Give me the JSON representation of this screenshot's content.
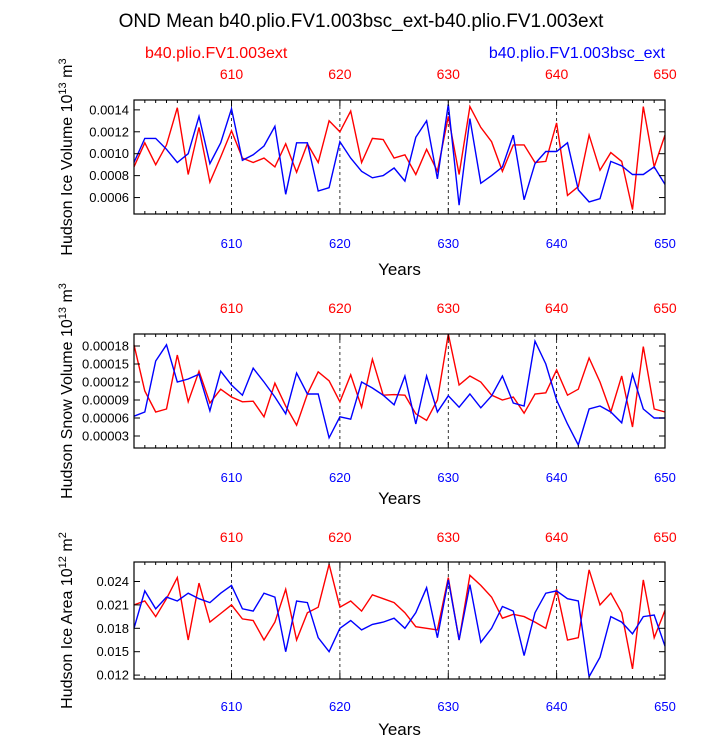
{
  "figure": {
    "title": "OND Mean b40.plio.FV1.003bsc_ext-b40.plio.FV1.003ext",
    "legend": {
      "left": {
        "label": "b40.plio.FV1.003ext",
        "color": "#ff0000"
      },
      "right": {
        "label": "b40.plio.FV1.003bsc_ext",
        "color": "#0000ff"
      }
    }
  },
  "chart_data": [
    {
      "type": "line",
      "ylabel": "Hudson Ice Volume 10^13 m^3",
      "ylabel_parts": {
        "base": "Hudson Ice Volume 10",
        "exp1": "13",
        "unit": " m",
        "exp2": "3"
      },
      "xlabel": "Years",
      "xlim": [
        601,
        650
      ],
      "ylim": [
        0.00045,
        0.00149
      ],
      "yticks": [
        0.0006,
        0.0008,
        0.001,
        0.0012,
        0.0014
      ],
      "ytick_labels": [
        "0.0006",
        "0.0008",
        "0.0010",
        "0.0012",
        "0.0014"
      ],
      "xticks": [
        610,
        620,
        630,
        640,
        650
      ],
      "xtick_labels": [
        "610",
        "620",
        "630",
        "640",
        "650"
      ],
      "top_xtick_labels": [
        "610",
        "620",
        "630",
        "640",
        "650"
      ],
      "gridlines_x": [
        610,
        620,
        630,
        640
      ],
      "x_start": 601,
      "series": [
        {
          "name": "b40.plio.FV1.003ext",
          "color": "#ff0000",
          "values": [
            0.00088,
            0.0011,
            0.0009,
            0.00108,
            0.00142,
            0.00081,
            0.00124,
            0.00074,
            0.00097,
            0.00121,
            0.00096,
            0.00092,
            0.00096,
            0.00088,
            0.00109,
            0.00083,
            0.00109,
            0.00092,
            0.0013,
            0.0012,
            0.00139,
            0.00092,
            0.00114,
            0.00113,
            0.00096,
            0.00099,
            0.00081,
            0.00104,
            0.00084,
            0.00134,
            0.00081,
            0.00143,
            0.00124,
            0.00111,
            0.00084,
            0.00108,
            0.00108,
            0.00092,
            0.00093,
            0.00128,
            0.00062,
            0.0007,
            0.00117,
            0.00085,
            0.00101,
            0.00093,
            0.00049,
            0.00143,
            0.00088,
            0.00117
          ]
        },
        {
          "name": "b40.plio.FV1.003bsc_ext",
          "color": "#0000ff",
          "values": [
            0.00092,
            0.00114,
            0.00114,
            0.00104,
            0.00092,
            0.001,
            0.00134,
            0.00091,
            0.0011,
            0.00141,
            0.00094,
            0.00099,
            0.00107,
            0.00125,
            0.00063,
            0.0011,
            0.0011,
            0.00066,
            0.00069,
            0.00111,
            0.00096,
            0.00084,
            0.00078,
            0.0008,
            0.00087,
            0.00075,
            0.00115,
            0.0013,
            0.00077,
            0.00145,
            0.00053,
            0.00132,
            0.00073,
            0.0008,
            0.00088,
            0.00117,
            0.00058,
            0.00091,
            0.00102,
            0.00102,
            0.0011,
            0.00067,
            0.00056,
            0.00059,
            0.00093,
            0.00089,
            0.00081,
            0.00081,
            0.00088,
            0.00072
          ]
        }
      ]
    },
    {
      "type": "line",
      "ylabel": "Hudson Snow Volume 10^13 m^3",
      "ylabel_parts": {
        "base": "Hudson Snow Volume 10",
        "exp1": "13",
        "unit": " m",
        "exp2": "3"
      },
      "xlabel": "Years",
      "xlim": [
        601,
        650
      ],
      "ylim": [
        1e-05,
        0.0002
      ],
      "yticks": [
        3e-05,
        6e-05,
        9e-05,
        0.00012,
        0.00015,
        0.00018
      ],
      "ytick_labels": [
        "0.00003",
        "0.00006",
        "0.00009",
        "0.00012",
        "0.00015",
        "0.00018"
      ],
      "xticks": [
        610,
        620,
        630,
        640,
        650
      ],
      "xtick_labels": [
        "610",
        "620",
        "630",
        "640",
        "650"
      ],
      "top_xtick_labels": [
        "610",
        "620",
        "630",
        "640",
        "650"
      ],
      "gridlines_x": [
        610,
        620,
        630,
        640
      ],
      "x_start": 601,
      "series": [
        {
          "name": "b40.plio.FV1.003ext",
          "color": "#ff0000",
          "values": [
            0.000182,
            0.000105,
            7e-05,
            7.5e-05,
            0.000165,
            8.7e-05,
            0.000138,
            8.5e-05,
            0.000108,
            9.5e-05,
            8.7e-05,
            8.8e-05,
            6.2e-05,
            0.000118,
            8e-05,
            4.8e-05,
            0.0001,
            0.000137,
            0.000122,
            8.7e-05,
            0.000132,
            7.8e-05,
            0.000158,
            9.8e-05,
            9.9e-05,
            9.8e-05,
            6.7e-05,
            5.6e-05,
            9e-05,
            0.0002,
            0.000115,
            0.00013,
            0.00012,
            9.8e-05,
            9e-05,
            9.5e-05,
            6.8e-05,
            0.0001,
            0.000102,
            0.00014,
            9.8e-05,
            0.000108,
            0.00016,
            0.00012,
            7e-05,
            0.00013,
            4.5e-05,
            0.000179,
            7.5e-05,
            7e-05
          ]
        },
        {
          "name": "b40.plio.FV1.003bsc_ext",
          "color": "#0000ff",
          "values": [
            6.3e-05,
            7e-05,
            0.000155,
            0.000182,
            0.00012,
            0.000125,
            0.000133,
            7.2e-05,
            0.000138,
            0.000115,
            9.8e-05,
            0.000143,
            0.00012,
            9.5e-05,
            6.7e-05,
            0.000135,
            0.0001,
            0.0001,
            2.7e-05,
            6.2e-05,
            5.8e-05,
            0.00012,
            0.00011,
            9.8e-05,
            8.2e-05,
            0.00013,
            5e-05,
            0.00013,
            7e-05,
            9.7e-05,
            7.8e-05,
            0.0001,
            7.7e-05,
            9.7e-05,
            0.00013,
            8.5e-05,
            8e-05,
            0.000188,
            0.00015,
            9e-05,
            5e-05,
            1.5e-05,
            7.5e-05,
            8e-05,
            7e-05,
            5.2e-05,
            0.000133,
            7.5e-05,
            6e-05,
            6e-05
          ]
        }
      ]
    },
    {
      "type": "line",
      "ylabel": "Hudson Ice Area 10^12 m^2",
      "ylabel_parts": {
        "base": "Hudson Ice Area 10",
        "exp1": "12",
        "unit": " m",
        "exp2": "2"
      },
      "xlabel": "Years",
      "xlim": [
        601,
        650
      ],
      "ylim": [
        0.0115,
        0.0265
      ],
      "yticks": [
        0.012,
        0.015,
        0.018,
        0.021,
        0.024
      ],
      "ytick_labels": [
        "0.012",
        "0.015",
        "0.018",
        "0.021",
        "0.024"
      ],
      "xticks": [
        610,
        620,
        630,
        640,
        650
      ],
      "xtick_labels": [
        "610",
        "620",
        "630",
        "640",
        "650"
      ],
      "top_xtick_labels": [
        "610",
        "620",
        "630",
        "640",
        "650"
      ],
      "gridlines_x": [
        610,
        620,
        630,
        640
      ],
      "x_start": 601,
      "series": [
        {
          "name": "b40.plio.FV1.003ext",
          "color": "#ff0000",
          "values": [
            0.021,
            0.0215,
            0.0195,
            0.0218,
            0.0245,
            0.0165,
            0.0238,
            0.0188,
            0.0199,
            0.021,
            0.0192,
            0.019,
            0.0165,
            0.0188,
            0.023,
            0.0165,
            0.02,
            0.0207,
            0.0262,
            0.0207,
            0.0215,
            0.0202,
            0.0223,
            0.0218,
            0.0213,
            0.02,
            0.0182,
            0.018,
            0.0178,
            0.0245,
            0.0165,
            0.0248,
            0.0235,
            0.022,
            0.0193,
            0.0198,
            0.0195,
            0.0188,
            0.018,
            0.023,
            0.0165,
            0.0168,
            0.0255,
            0.021,
            0.0225,
            0.02,
            0.0128,
            0.0242,
            0.0168,
            0.0203
          ]
        },
        {
          "name": "b40.plio.FV1.003bsc_ext",
          "color": "#0000ff",
          "values": [
            0.018,
            0.0228,
            0.0205,
            0.022,
            0.0215,
            0.0225,
            0.0218,
            0.0213,
            0.0225,
            0.0235,
            0.0205,
            0.0202,
            0.0225,
            0.022,
            0.015,
            0.0215,
            0.0213,
            0.0168,
            0.015,
            0.018,
            0.019,
            0.0178,
            0.0185,
            0.0188,
            0.0193,
            0.018,
            0.02,
            0.0232,
            0.0168,
            0.0242,
            0.0165,
            0.0236,
            0.0162,
            0.018,
            0.0208,
            0.0202,
            0.0145,
            0.02,
            0.0225,
            0.0228,
            0.0218,
            0.0215,
            0.0118,
            0.0143,
            0.0195,
            0.0188,
            0.0173,
            0.0195,
            0.0197,
            0.0157
          ]
        }
      ]
    }
  ]
}
